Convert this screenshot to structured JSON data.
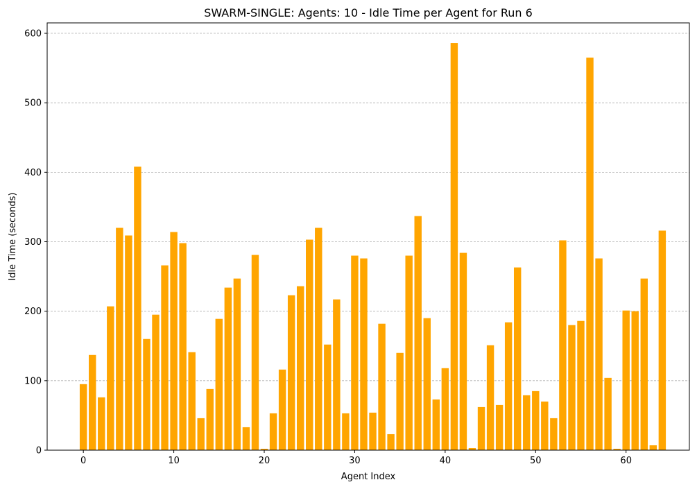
{
  "chart_data": {
    "type": "bar",
    "title": "SWARM-SINGLE: Agents: 10 - Idle Time per Agent for Run 6",
    "xlabel": "Agent Index",
    "ylabel": "Idle Time (seconds)",
    "xlim": [
      -4,
      67
    ],
    "ylim": [
      0,
      615
    ],
    "xticks": [
      0,
      10,
      20,
      30,
      40,
      50,
      60
    ],
    "yticks": [
      0,
      100,
      200,
      300,
      400,
      500,
      600
    ],
    "grid": "y-dashed",
    "bar_color": "#FFA500",
    "x": [
      0,
      1,
      2,
      3,
      4,
      5,
      6,
      7,
      8,
      9,
      10,
      11,
      12,
      13,
      14,
      15,
      16,
      17,
      18,
      19,
      20,
      21,
      22,
      23,
      24,
      25,
      26,
      27,
      28,
      29,
      30,
      31,
      32,
      33,
      34,
      35,
      36,
      37,
      38,
      39,
      40,
      41,
      42,
      43,
      44,
      45,
      46,
      47,
      48,
      49,
      50,
      51,
      52,
      53,
      54,
      55,
      56,
      57,
      58,
      59,
      60,
      61,
      62,
      63,
      64
    ],
    "values": [
      95,
      137,
      76,
      207,
      320,
      309,
      408,
      160,
      195,
      266,
      314,
      298,
      141,
      46,
      88,
      189,
      234,
      247,
      33,
      281,
      2,
      53,
      116,
      223,
      236,
      303,
      320,
      152,
      217,
      53,
      280,
      276,
      54,
      182,
      23,
      140,
      280,
      337,
      190,
      73,
      118,
      586,
      284,
      3,
      62,
      151,
      65,
      184,
      263,
      79,
      85,
      70,
      46,
      302,
      180,
      186,
      565,
      276,
      104,
      2,
      201,
      200,
      247,
      7,
      316
    ]
  }
}
